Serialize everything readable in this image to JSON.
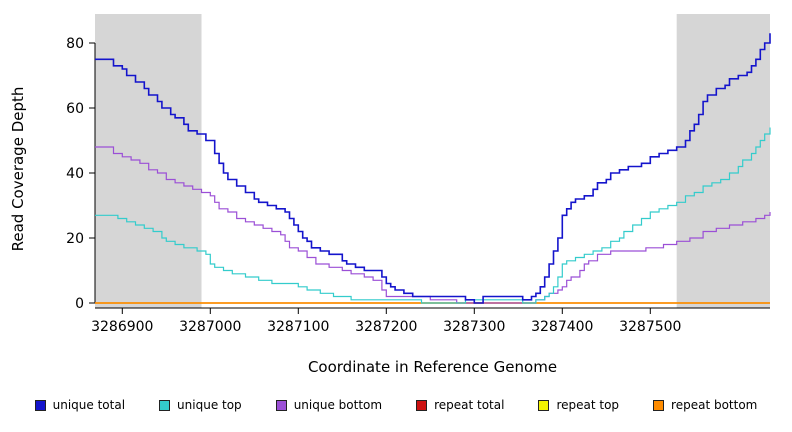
{
  "chart_data": {
    "type": "line",
    "style": "step",
    "title": "",
    "xlabel": "Coordinate in Reference Genome",
    "ylabel": "Read Coverage Depth",
    "xlim": [
      3286869,
      3287636
    ],
    "ylim": [
      0,
      89
    ],
    "xticks": [
      3286900,
      3287000,
      3287100,
      3287200,
      3287300,
      3287400,
      3287500
    ],
    "yticks": [
      0,
      20,
      40,
      60,
      80
    ],
    "grid": false,
    "legend_position": "bottom",
    "shade_color": "#d6d6d6",
    "shaded_regions": [
      [
        3286869,
        3286990
      ],
      [
        3287530,
        3287636
      ]
    ],
    "draw_order": [
      3,
      4,
      5,
      2,
      1,
      0
    ],
    "series": [
      {
        "name": "unique total",
        "color": "#1414CC",
        "width": 1.6,
        "points": [
          [
            3286869,
            75
          ],
          [
            3286880,
            75
          ],
          [
            3286890,
            73
          ],
          [
            3286900,
            72
          ],
          [
            3286905,
            70
          ],
          [
            3286915,
            68
          ],
          [
            3286925,
            66
          ],
          [
            3286930,
            64
          ],
          [
            3286940,
            62
          ],
          [
            3286945,
            60
          ],
          [
            3286955,
            58
          ],
          [
            3286960,
            57
          ],
          [
            3286970,
            55
          ],
          [
            3286975,
            53
          ],
          [
            3286985,
            52
          ],
          [
            3286995,
            50
          ],
          [
            3287000,
            50
          ],
          [
            3287005,
            46
          ],
          [
            3287010,
            43
          ],
          [
            3287015,
            40
          ],
          [
            3287020,
            38
          ],
          [
            3287030,
            36
          ],
          [
            3287040,
            34
          ],
          [
            3287050,
            32
          ],
          [
            3287055,
            31
          ],
          [
            3287065,
            30
          ],
          [
            3287075,
            29
          ],
          [
            3287085,
            28
          ],
          [
            3287090,
            26
          ],
          [
            3287095,
            24
          ],
          [
            3287100,
            22
          ],
          [
            3287105,
            20
          ],
          [
            3287110,
            19
          ],
          [
            3287115,
            17
          ],
          [
            3287125,
            16
          ],
          [
            3287135,
            15
          ],
          [
            3287145,
            15
          ],
          [
            3287150,
            13
          ],
          [
            3287155,
            12
          ],
          [
            3287165,
            11
          ],
          [
            3287175,
            10
          ],
          [
            3287185,
            10
          ],
          [
            3287195,
            8
          ],
          [
            3287200,
            6
          ],
          [
            3287205,
            5
          ],
          [
            3287210,
            4
          ],
          [
            3287220,
            3
          ],
          [
            3287230,
            2
          ],
          [
            3287250,
            2
          ],
          [
            3287270,
            2
          ],
          [
            3287290,
            1
          ],
          [
            3287300,
            0
          ],
          [
            3287310,
            2
          ],
          [
            3287320,
            2
          ],
          [
            3287340,
            2
          ],
          [
            3287355,
            1
          ],
          [
            3287365,
            2
          ],
          [
            3287370,
            3
          ],
          [
            3287375,
            5
          ],
          [
            3287380,
            8
          ],
          [
            3287385,
            12
          ],
          [
            3287390,
            16
          ],
          [
            3287395,
            20
          ],
          [
            3287400,
            27
          ],
          [
            3287405,
            29
          ],
          [
            3287410,
            31
          ],
          [
            3287415,
            32
          ],
          [
            3287425,
            33
          ],
          [
            3287435,
            35
          ],
          [
            3287440,
            37
          ],
          [
            3287450,
            38
          ],
          [
            3287455,
            40
          ],
          [
            3287465,
            41
          ],
          [
            3287475,
            42
          ],
          [
            3287490,
            43
          ],
          [
            3287500,
            45
          ],
          [
            3287510,
            46
          ],
          [
            3287520,
            47
          ],
          [
            3287530,
            48
          ],
          [
            3287540,
            50
          ],
          [
            3287545,
            53
          ],
          [
            3287550,
            55
          ],
          [
            3287555,
            58
          ],
          [
            3287560,
            62
          ],
          [
            3287565,
            64
          ],
          [
            3287575,
            66
          ],
          [
            3287585,
            67
          ],
          [
            3287590,
            69
          ],
          [
            3287600,
            70
          ],
          [
            3287610,
            71
          ],
          [
            3287615,
            73
          ],
          [
            3287620,
            75
          ],
          [
            3287625,
            78
          ],
          [
            3287630,
            80
          ],
          [
            3287636,
            83
          ]
        ]
      },
      {
        "name": "unique top",
        "color": "#33CCCC",
        "width": 1.2,
        "points": [
          [
            3286869,
            27
          ],
          [
            3286885,
            27
          ],
          [
            3286895,
            26
          ],
          [
            3286905,
            25
          ],
          [
            3286915,
            24
          ],
          [
            3286925,
            23
          ],
          [
            3286935,
            22
          ],
          [
            3286945,
            20
          ],
          [
            3286950,
            19
          ],
          [
            3286960,
            18
          ],
          [
            3286970,
            17
          ],
          [
            3286985,
            16
          ],
          [
            3286995,
            15
          ],
          [
            3287000,
            12
          ],
          [
            3287005,
            11
          ],
          [
            3287015,
            10
          ],
          [
            3287025,
            9
          ],
          [
            3287040,
            8
          ],
          [
            3287055,
            7
          ],
          [
            3287070,
            6
          ],
          [
            3287085,
            6
          ],
          [
            3287100,
            5
          ],
          [
            3287110,
            4
          ],
          [
            3287125,
            3
          ],
          [
            3287140,
            2
          ],
          [
            3287160,
            1
          ],
          [
            3287180,
            1
          ],
          [
            3287210,
            1
          ],
          [
            3287240,
            0
          ],
          [
            3287290,
            1
          ],
          [
            3287310,
            1
          ],
          [
            3287330,
            1
          ],
          [
            3287355,
            0
          ],
          [
            3287370,
            1
          ],
          [
            3287380,
            2
          ],
          [
            3287385,
            3
          ],
          [
            3287390,
            5
          ],
          [
            3287395,
            8
          ],
          [
            3287400,
            12
          ],
          [
            3287405,
            13
          ],
          [
            3287415,
            14
          ],
          [
            3287425,
            15
          ],
          [
            3287435,
            16
          ],
          [
            3287445,
            17
          ],
          [
            3287455,
            19
          ],
          [
            3287465,
            20
          ],
          [
            3287470,
            22
          ],
          [
            3287480,
            24
          ],
          [
            3287490,
            26
          ],
          [
            3287500,
            28
          ],
          [
            3287510,
            29
          ],
          [
            3287520,
            30
          ],
          [
            3287530,
            31
          ],
          [
            3287540,
            33
          ],
          [
            3287550,
            34
          ],
          [
            3287560,
            36
          ],
          [
            3287570,
            37
          ],
          [
            3287580,
            38
          ],
          [
            3287590,
            40
          ],
          [
            3287600,
            42
          ],
          [
            3287605,
            44
          ],
          [
            3287615,
            46
          ],
          [
            3287620,
            48
          ],
          [
            3287625,
            50
          ],
          [
            3287630,
            52
          ],
          [
            3287636,
            54
          ]
        ]
      },
      {
        "name": "unique bottom",
        "color": "#9B4FD6",
        "width": 1.2,
        "points": [
          [
            3286869,
            48
          ],
          [
            3286880,
            48
          ],
          [
            3286890,
            46
          ],
          [
            3286900,
            45
          ],
          [
            3286910,
            44
          ],
          [
            3286920,
            43
          ],
          [
            3286930,
            41
          ],
          [
            3286940,
            40
          ],
          [
            3286950,
            38
          ],
          [
            3286960,
            37
          ],
          [
            3286970,
            36
          ],
          [
            3286980,
            35
          ],
          [
            3286990,
            34
          ],
          [
            3287000,
            33
          ],
          [
            3287005,
            31
          ],
          [
            3287010,
            29
          ],
          [
            3287020,
            28
          ],
          [
            3287030,
            26
          ],
          [
            3287040,
            25
          ],
          [
            3287050,
            24
          ],
          [
            3287060,
            23
          ],
          [
            3287070,
            22
          ],
          [
            3287080,
            21
          ],
          [
            3287085,
            19
          ],
          [
            3287090,
            17
          ],
          [
            3287100,
            16
          ],
          [
            3287110,
            14
          ],
          [
            3287120,
            12
          ],
          [
            3287135,
            11
          ],
          [
            3287150,
            10
          ],
          [
            3287160,
            9
          ],
          [
            3287175,
            8
          ],
          [
            3287185,
            7
          ],
          [
            3287195,
            4
          ],
          [
            3287200,
            2
          ],
          [
            3287230,
            2
          ],
          [
            3287250,
            1
          ],
          [
            3287280,
            0
          ],
          [
            3287350,
            0
          ],
          [
            3287370,
            1
          ],
          [
            3287380,
            2
          ],
          [
            3287385,
            3
          ],
          [
            3287395,
            4
          ],
          [
            3287400,
            5
          ],
          [
            3287405,
            7
          ],
          [
            3287410,
            8
          ],
          [
            3287420,
            10
          ],
          [
            3287425,
            12
          ],
          [
            3287430,
            13
          ],
          [
            3287440,
            15
          ],
          [
            3287455,
            16
          ],
          [
            3287475,
            16
          ],
          [
            3287495,
            17
          ],
          [
            3287515,
            18
          ],
          [
            3287530,
            19
          ],
          [
            3287545,
            20
          ],
          [
            3287560,
            22
          ],
          [
            3287575,
            23
          ],
          [
            3287590,
            24
          ],
          [
            3287605,
            25
          ],
          [
            3287620,
            26
          ],
          [
            3287630,
            27
          ],
          [
            3287636,
            28
          ]
        ]
      },
      {
        "name": "repeat total",
        "color": "#CC1111",
        "width": 1.2,
        "points": [
          [
            3286869,
            0
          ],
          [
            3287636,
            0
          ]
        ]
      },
      {
        "name": "repeat top",
        "color": "#F2F200",
        "width": 1.2,
        "points": [
          [
            3286869,
            0
          ],
          [
            3287636,
            0
          ]
        ]
      },
      {
        "name": "repeat bottom",
        "color": "#FF8C00",
        "width": 1.4,
        "points": [
          [
            3286869,
            0
          ],
          [
            3287636,
            0
          ]
        ]
      }
    ]
  }
}
